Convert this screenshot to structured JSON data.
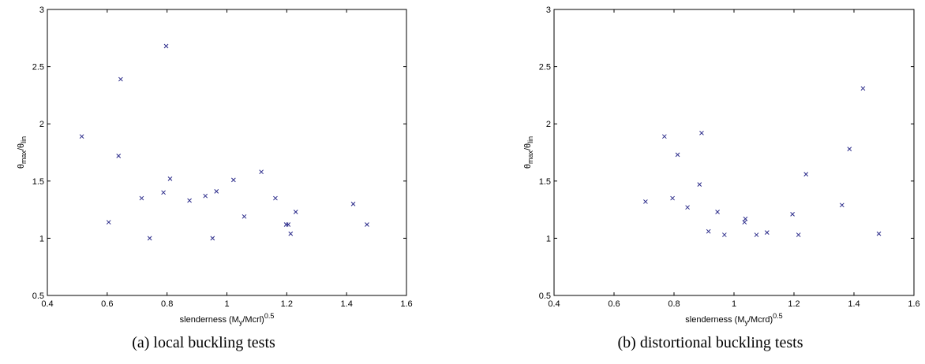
{
  "chart_data": [
    {
      "type": "scatter",
      "caption": "(a) local buckling tests",
      "xlabel": "slenderness (M",
      "xlabel_sub": "y",
      "xlabel_rest": "/Mcrl)",
      "xlabel_sup": "0.5",
      "ylabel": "θ",
      "ylabel_sub1": "max",
      "ylabel_mid": "/θ",
      "ylabel_sub2": "lin",
      "xlim": [
        0.4,
        1.6
      ],
      "ylim": [
        0.5,
        3
      ],
      "xticks": [
        "0.4",
        "0.6",
        "0.8",
        "1",
        "1.2",
        "1.4",
        "1.6"
      ],
      "yticks": [
        "0.5",
        "1",
        "1.5",
        "2",
        "2.5",
        "3"
      ],
      "marker": "x",
      "marker_color": "#2b2b8a",
      "grid": false,
      "points": [
        [
          0.515,
          1.89
        ],
        [
          0.605,
          1.14
        ],
        [
          0.638,
          1.72
        ],
        [
          0.645,
          2.39
        ],
        [
          0.715,
          1.35
        ],
        [
          0.742,
          1.0
        ],
        [
          0.788,
          1.4
        ],
        [
          0.797,
          2.68
        ],
        [
          0.81,
          1.52
        ],
        [
          0.875,
          1.33
        ],
        [
          0.928,
          1.37
        ],
        [
          0.952,
          1.0
        ],
        [
          0.965,
          1.41
        ],
        [
          1.022,
          1.51
        ],
        [
          1.058,
          1.19
        ],
        [
          1.115,
          1.58
        ],
        [
          1.162,
          1.35
        ],
        [
          1.198,
          1.12
        ],
        [
          1.205,
          1.12
        ],
        [
          1.213,
          1.04
        ],
        [
          1.23,
          1.23
        ],
        [
          1.422,
          1.3
        ],
        [
          1.468,
          1.12
        ]
      ]
    },
    {
      "type": "scatter",
      "caption": "(b) distortional buckling tests",
      "xlabel": "slenderness (M",
      "xlabel_sub": "y",
      "xlabel_rest": "/Mcrd)",
      "xlabel_sup": "0.5",
      "ylabel": "θ",
      "ylabel_sub1": "max",
      "ylabel_mid": "/θ",
      "ylabel_sub2": "lin",
      "xlim": [
        0.4,
        1.6
      ],
      "ylim": [
        0.5,
        3
      ],
      "xticks": [
        "0.4",
        "0.6",
        "0.8",
        "1",
        "1.2",
        "1.4",
        "1.6"
      ],
      "yticks": [
        "0.5",
        "1",
        "1.5",
        "2",
        "2.5",
        "3"
      ],
      "marker": "x",
      "marker_color": "#2b2b8a",
      "grid": false,
      "points": [
        [
          0.705,
          1.32
        ],
        [
          0.768,
          1.89
        ],
        [
          0.795,
          1.35
        ],
        [
          0.812,
          1.73
        ],
        [
          0.845,
          1.27
        ],
        [
          0.885,
          1.47
        ],
        [
          0.892,
          1.92
        ],
        [
          0.915,
          1.06
        ],
        [
          0.945,
          1.23
        ],
        [
          0.968,
          1.03
        ],
        [
          1.035,
          1.14
        ],
        [
          1.038,
          1.17
        ],
        [
          1.075,
          1.03
        ],
        [
          1.11,
          1.05
        ],
        [
          1.195,
          1.21
        ],
        [
          1.215,
          1.03
        ],
        [
          1.24,
          1.56
        ],
        [
          1.36,
          1.29
        ],
        [
          1.385,
          1.78
        ],
        [
          1.43,
          2.31
        ],
        [
          1.483,
          1.04
        ]
      ]
    }
  ]
}
